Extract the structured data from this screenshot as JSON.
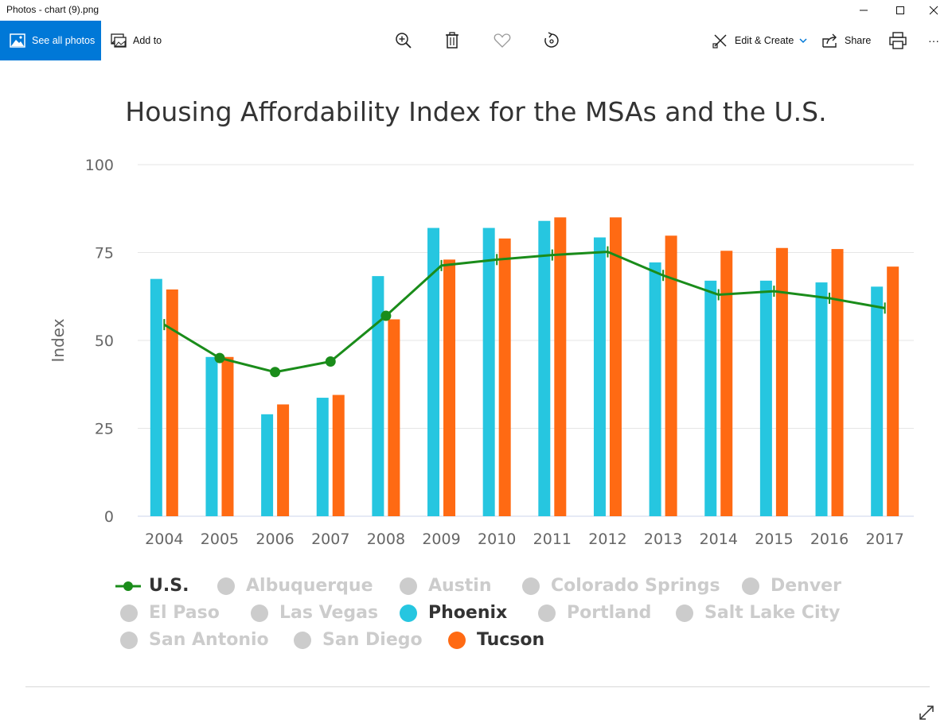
{
  "window": {
    "title": "Photos - chart (9).png"
  },
  "toolbar": {
    "see_all_photos": "See all photos",
    "add_to": "Add to",
    "edit_create": "Edit & Create",
    "share": "Share",
    "more": "···"
  },
  "colors": {
    "accent": "#0078d7",
    "phoenix": "#26c6e0",
    "tucson": "#ff6a13",
    "us": "#1a8c1a",
    "inactive": "#cccccc"
  },
  "chart_data": {
    "type": "bar",
    "title": "Housing Affordability Index for the MSAs and the U.S.",
    "ylabel": "Index",
    "xlabel": "",
    "ylim": [
      0,
      100
    ],
    "yticks": [
      "0",
      "25",
      "50",
      "75",
      "100"
    ],
    "categories": [
      "2004",
      "2005",
      "2006",
      "2007",
      "2008",
      "2009",
      "2010",
      "2011",
      "2012",
      "2013",
      "2014",
      "2015",
      "2016",
      "2017"
    ],
    "series": [
      {
        "name": "Phoenix",
        "type": "bar",
        "color": "#26c6e0",
        "values": [
          67.5,
          45.3,
          29,
          33.7,
          68.3,
          82,
          82,
          84,
          79.3,
          72.2,
          67,
          67,
          66.5,
          65.3
        ]
      },
      {
        "name": "Tucson",
        "type": "bar",
        "color": "#ff6a13",
        "values": [
          64.5,
          45.3,
          31.8,
          34.5,
          56,
          73,
          79,
          85,
          85,
          79.8,
          75.5,
          76.3,
          76,
          71
        ]
      },
      {
        "name": "U.S.",
        "type": "line",
        "color": "#1a8c1a",
        "values": [
          54.5,
          45,
          41,
          44,
          57,
          71.3,
          73,
          74.3,
          75.2,
          68.5,
          63,
          64,
          62,
          59.2
        ],
        "markers": [
          false,
          true,
          true,
          true,
          true,
          false,
          false,
          false,
          false,
          false,
          false,
          false,
          false,
          false
        ]
      }
    ],
    "legend": [
      {
        "label": "U.S.",
        "active": true,
        "kind": "line",
        "color": "#1a8c1a"
      },
      {
        "label": "Albuquerque",
        "active": false
      },
      {
        "label": "Austin",
        "active": false
      },
      {
        "label": "Colorado Springs",
        "active": false
      },
      {
        "label": "Denver",
        "active": false
      },
      {
        "label": "El Paso",
        "active": false
      },
      {
        "label": "Las Vegas",
        "active": false
      },
      {
        "label": "Phoenix",
        "active": true,
        "color": "#26c6e0"
      },
      {
        "label": "Portland",
        "active": false
      },
      {
        "label": "Salt Lake City",
        "active": false
      },
      {
        "label": "San Antonio",
        "active": false
      },
      {
        "label": "San Diego",
        "active": false
      },
      {
        "label": "Tucson",
        "active": true,
        "color": "#ff6a13"
      }
    ],
    "grid": true,
    "legend_position": "bottom"
  }
}
